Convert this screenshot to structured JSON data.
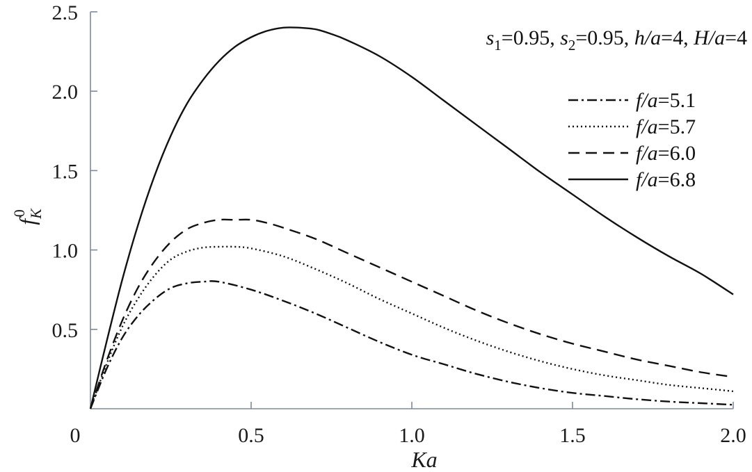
{
  "chart_data": {
    "type": "line",
    "title": "",
    "xlabel": "Ka",
    "ylabel": {
      "base": "f",
      "sub": "K",
      "sup": "0"
    },
    "xlim": [
      0,
      2.0
    ],
    "ylim": [
      0,
      2.5
    ],
    "x_ticks": [
      0,
      0.5,
      1.0,
      1.5,
      2.0
    ],
    "x_tick_labels": [
      "0",
      "0.5",
      "1.0",
      "1.5",
      "2.0"
    ],
    "y_ticks": [
      0.5,
      1.0,
      1.5,
      2.0,
      2.5
    ],
    "y_tick_labels": [
      "0.5",
      "1.0",
      "1.5",
      "2.0",
      "2.5"
    ],
    "grid": false,
    "legend_position": "top-right",
    "annotation": {
      "s1_label": "s",
      "s1_sub": "1",
      "s1_value": "=0.95, ",
      "s2_label": "s",
      "s2_sub": "2",
      "s2_value": "=0.95, ",
      "h_label": "h/a",
      "h_value": "=4, ",
      "H_label": "H/a",
      "H_value": "=4"
    },
    "series": [
      {
        "name_var": "f/a",
        "name_val": "=5.1",
        "style": "dashdot",
        "x": [
          0,
          0.05,
          0.1,
          0.15,
          0.2,
          0.25,
          0.3,
          0.35,
          0.4,
          0.5,
          0.6,
          0.7,
          0.8,
          0.9,
          1.0,
          1.1,
          1.2,
          1.3,
          1.4,
          1.5,
          1.6,
          1.7,
          1.8,
          1.9,
          2.0
        ],
        "y": [
          0,
          0.25,
          0.45,
          0.59,
          0.69,
          0.76,
          0.79,
          0.8,
          0.8,
          0.75,
          0.68,
          0.6,
          0.51,
          0.42,
          0.34,
          0.28,
          0.22,
          0.17,
          0.13,
          0.1,
          0.08,
          0.06,
          0.045,
          0.035,
          0.025
        ]
      },
      {
        "name_var": "f/a",
        "name_val": "=5.7",
        "style": "dotted",
        "x": [
          0,
          0.05,
          0.1,
          0.15,
          0.2,
          0.25,
          0.3,
          0.35,
          0.4,
          0.45,
          0.5,
          0.6,
          0.7,
          0.8,
          0.9,
          1.0,
          1.1,
          1.2,
          1.3,
          1.4,
          1.5,
          1.6,
          1.7,
          1.8,
          1.9,
          2.0
        ],
        "y": [
          0,
          0.28,
          0.52,
          0.7,
          0.84,
          0.94,
          0.99,
          1.015,
          1.02,
          1.02,
          1.01,
          0.96,
          0.88,
          0.79,
          0.69,
          0.6,
          0.51,
          0.43,
          0.36,
          0.3,
          0.25,
          0.21,
          0.18,
          0.15,
          0.13,
          0.11
        ]
      },
      {
        "name_var": "f/a",
        "name_val": "=6.0",
        "style": "dashed",
        "x": [
          0,
          0.05,
          0.1,
          0.15,
          0.2,
          0.25,
          0.3,
          0.35,
          0.4,
          0.45,
          0.5,
          0.55,
          0.6,
          0.7,
          0.8,
          0.9,
          1.0,
          1.1,
          1.2,
          1.3,
          1.4,
          1.5,
          1.6,
          1.7,
          1.8,
          1.9,
          2.0
        ],
        "y": [
          0,
          0.3,
          0.56,
          0.77,
          0.93,
          1.05,
          1.13,
          1.17,
          1.19,
          1.19,
          1.19,
          1.17,
          1.14,
          1.07,
          0.98,
          0.89,
          0.8,
          0.71,
          0.62,
          0.54,
          0.47,
          0.41,
          0.36,
          0.31,
          0.27,
          0.23,
          0.2
        ]
      },
      {
        "name_var": "f/a",
        "name_val": "=6.8",
        "style": "solid",
        "x": [
          0,
          0.05,
          0.1,
          0.15,
          0.2,
          0.25,
          0.3,
          0.35,
          0.4,
          0.45,
          0.5,
          0.55,
          0.6,
          0.65,
          0.7,
          0.75,
          0.8,
          0.9,
          1.0,
          1.1,
          1.2,
          1.3,
          1.4,
          1.5,
          1.6,
          1.7,
          1.8,
          1.9,
          2.0
        ],
        "y": [
          0,
          0.42,
          0.82,
          1.17,
          1.47,
          1.72,
          1.92,
          2.07,
          2.19,
          2.28,
          2.34,
          2.38,
          2.4,
          2.4,
          2.39,
          2.36,
          2.32,
          2.22,
          2.09,
          1.94,
          1.79,
          1.64,
          1.49,
          1.35,
          1.21,
          1.08,
          0.96,
          0.85,
          0.72
        ]
      }
    ]
  }
}
